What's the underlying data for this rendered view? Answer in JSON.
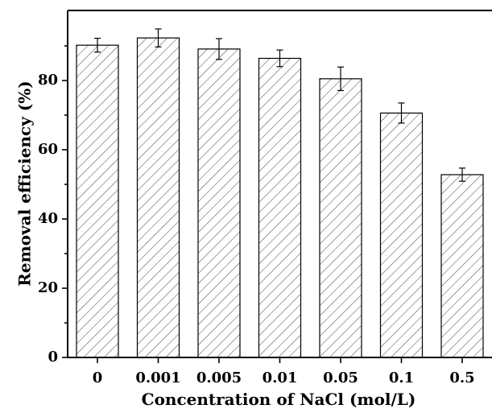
{
  "chart_data": {
    "type": "bar",
    "categories": [
      "0",
      "0.001",
      "0.005",
      "0.01",
      "0.05",
      "0.1",
      "0.5"
    ],
    "values": [
      90.2,
      92.3,
      89.1,
      86.4,
      80.5,
      70.6,
      52.8
    ],
    "errors": [
      2.0,
      2.6,
      3.0,
      2.4,
      3.4,
      2.9,
      1.9
    ],
    "xlabel": "Concentration of NaCl (mol/L)",
    "ylabel": "Removal efficiency (%)",
    "yticks": [
      0,
      20,
      40,
      60,
      80
    ],
    "ylim": [
      0,
      100
    ],
    "fill": "diagonal-hatch",
    "grid": false
  }
}
